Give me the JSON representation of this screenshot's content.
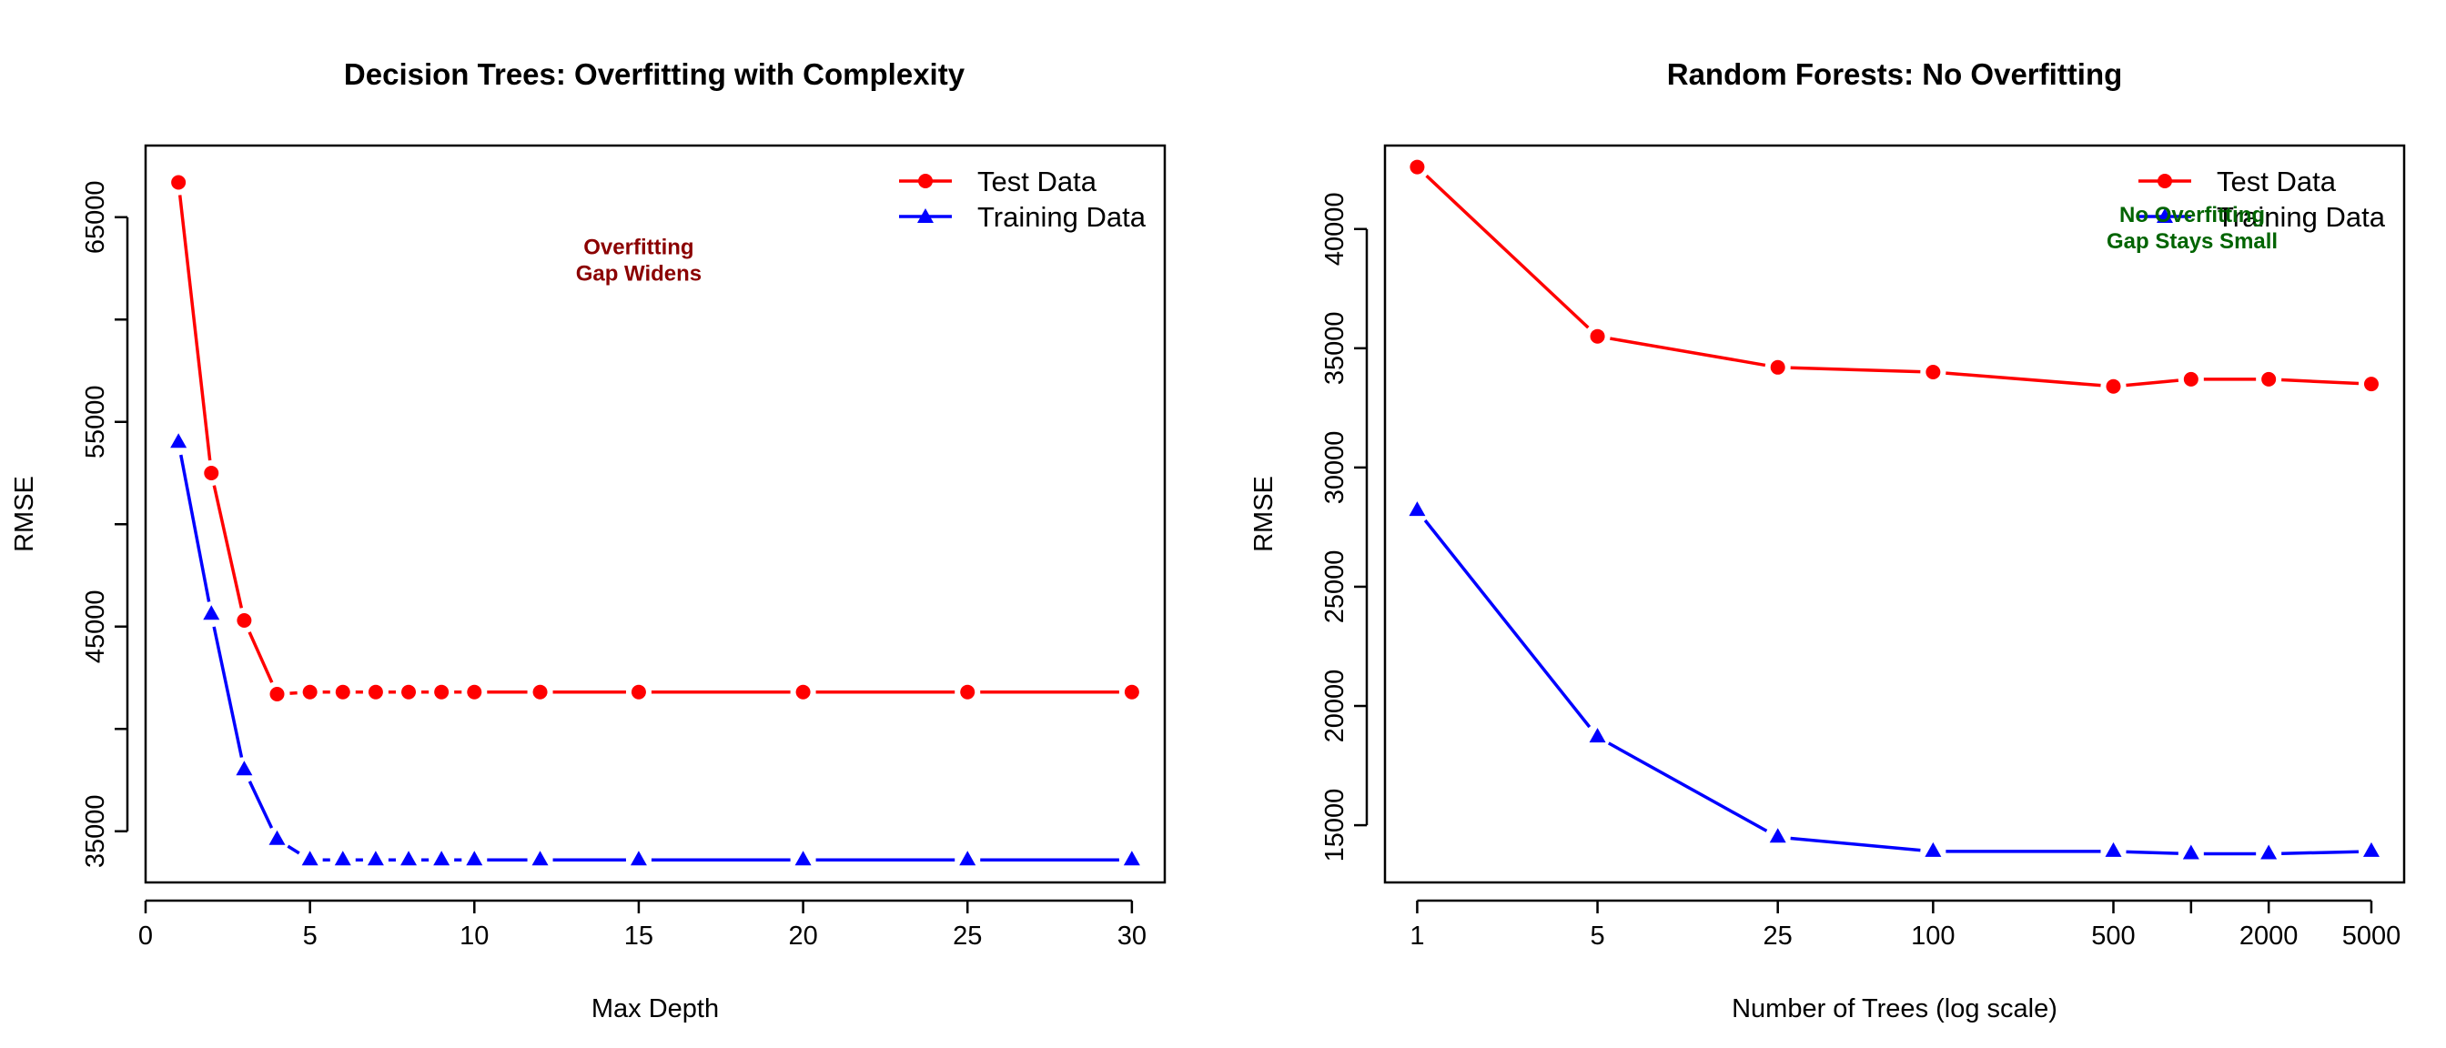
{
  "colors": {
    "test": "#ff0000",
    "train": "#0000ff",
    "annotation_left": "#8b0000",
    "annotation_right": "#006400",
    "axis": "#000000"
  },
  "chart_data": [
    {
      "type": "line",
      "title": "Decision Trees: Overfitting with Complexity",
      "xlabel": "Max Depth",
      "ylabel": "RMSE",
      "x_scale": "linear",
      "xlim": [
        0,
        31
      ],
      "ylim": [
        32500,
        68500
      ],
      "x_ticks": [
        0,
        5,
        10,
        15,
        20,
        25,
        30
      ],
      "x_tick_labels": [
        "0",
        "5",
        "10",
        "15",
        "20",
        "25",
        "30"
      ],
      "y_ticks": [
        35000,
        45000,
        55000,
        65000
      ],
      "y_tick_labels": [
        "35000",
        "45000",
        "55000",
        "65000"
      ],
      "y_minor_ticks": [
        40000,
        50000,
        60000
      ],
      "x": [
        1,
        2,
        3,
        4,
        5,
        6,
        7,
        8,
        9,
        10,
        12,
        15,
        20,
        25,
        30
      ],
      "series": [
        {
          "name": "Test Data",
          "color": "#ff0000",
          "marker": "circle",
          "values": [
            66700,
            52500,
            45300,
            41700,
            41800,
            41800,
            41800,
            41800,
            41800,
            41800,
            41800,
            41800,
            41800,
            41800,
            41800
          ]
        },
        {
          "name": "Training Data",
          "color": "#0000ff",
          "marker": "triangle",
          "values": [
            54000,
            45600,
            38000,
            34600,
            33600,
            33600,
            33600,
            33600,
            33600,
            33600,
            33600,
            33600,
            33600,
            33600,
            33600
          ]
        }
      ],
      "legend_position": "top-right",
      "annotation": [
        "Overfitting",
        "Gap Widens"
      ],
      "annotation_at": {
        "x": 15,
        "y": 63200
      }
    },
    {
      "type": "line",
      "title": "Random Forests: No Overfitting",
      "xlabel": "Number of Trees (log scale)",
      "ylabel": "RMSE",
      "x_scale": "log",
      "xlim": [
        0.75,
        6700
      ],
      "ylim": [
        12600,
        43500
      ],
      "x_ticks": [
        1,
        5,
        25,
        100,
        500,
        2000,
        5000
      ],
      "x_tick_labels": [
        "1",
        "5",
        "25",
        "100",
        "500",
        "2000",
        "5000"
      ],
      "x_minor_ticks": [
        1000
      ],
      "y_ticks": [
        15000,
        20000,
        25000,
        30000,
        35000,
        40000
      ],
      "y_tick_labels": [
        "15000",
        "20000",
        "25000",
        "30000",
        "35000",
        "40000"
      ],
      "x": [
        1,
        5,
        25,
        100,
        500,
        1000,
        2000,
        5000
      ],
      "series": [
        {
          "name": "Test Data",
          "color": "#ff0000",
          "marker": "circle",
          "values": [
            42600,
            35500,
            34200,
            34000,
            33400,
            33700,
            33700,
            33500
          ]
        },
        {
          "name": "Training Data",
          "color": "#0000ff",
          "marker": "triangle",
          "values": [
            28200,
            18700,
            14500,
            13900,
            13900,
            13800,
            13800,
            13900
          ]
        }
      ],
      "legend_position": "top-right",
      "annotation": [
        "No Overfitting",
        "Gap Stays Small"
      ],
      "annotation_at": {
        "x": 1010,
        "y": 40300
      }
    }
  ]
}
